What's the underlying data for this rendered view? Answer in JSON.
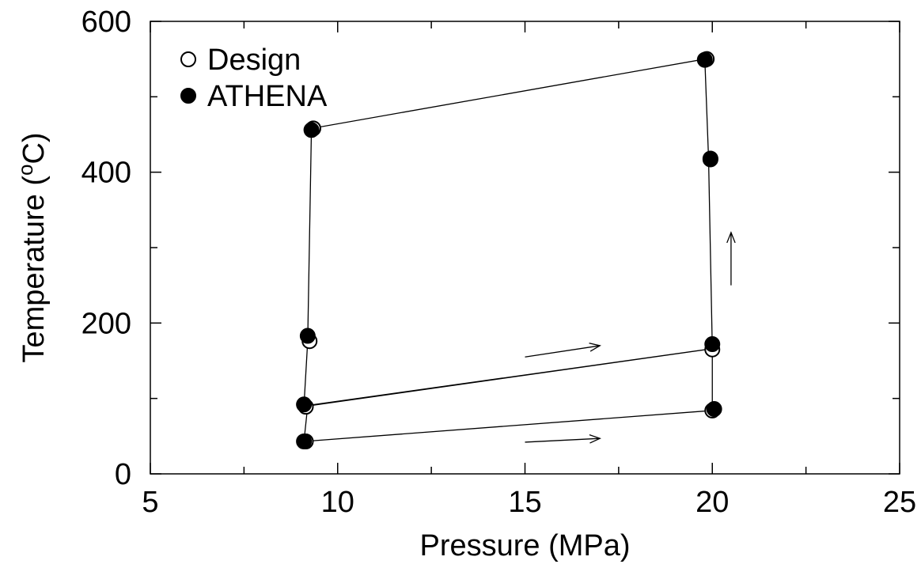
{
  "chart_data": {
    "type": "scatter",
    "xlabel": "Pressure (MPa)",
    "ylabel_main": "Temperature (",
    "ylabel_sup": "o",
    "ylabel_tail": "C)",
    "xlim": [
      5,
      25
    ],
    "ylim": [
      0,
      600
    ],
    "x_ticks": [
      5,
      10,
      15,
      20,
      25
    ],
    "x_tick_labels": [
      "5",
      "10",
      "15",
      "20",
      "25"
    ],
    "y_ticks": [
      0,
      200,
      400,
      600
    ],
    "y_tick_labels": [
      "0",
      "200",
      "400",
      "600"
    ],
    "x_minor_ticks": [
      7.5,
      12.5,
      17.5,
      22.5
    ],
    "y_minor_ticks": [
      100,
      300,
      500
    ],
    "grid": false,
    "legend_position": "top-left",
    "cycle_line": {
      "x": [
        9.1,
        20.0,
        20.0,
        9.1,
        9.2,
        9.3,
        19.8,
        19.9,
        20.0,
        9.2,
        9.1
      ],
      "y": [
        43,
        84,
        166,
        90,
        176,
        458,
        550,
        418,
        166,
        90,
        43
      ]
    },
    "series": [
      {
        "name": "Design",
        "marker": "open-circle",
        "x": [
          9.15,
          20.0,
          20.0,
          9.15,
          9.25,
          9.35,
          19.85,
          19.95
        ],
        "y": [
          43,
          84,
          165,
          89,
          176,
          458,
          550,
          418
        ]
      },
      {
        "name": "ATHENA",
        "marker": "filled-circle",
        "x": [
          9.1,
          20.05,
          20.0,
          9.1,
          9.2,
          9.3,
          19.8,
          19.95
        ],
        "y": [
          43,
          86,
          172,
          92,
          183,
          456,
          549,
          417
        ]
      }
    ],
    "arrows": [
      {
        "from": [
          15.0,
          42
        ],
        "to": [
          17.0,
          47
        ]
      },
      {
        "from": [
          15.0,
          155
        ],
        "to": [
          17.0,
          170
        ]
      },
      {
        "from": [
          20.5,
          250
        ],
        "to": [
          20.5,
          320
        ]
      }
    ]
  }
}
